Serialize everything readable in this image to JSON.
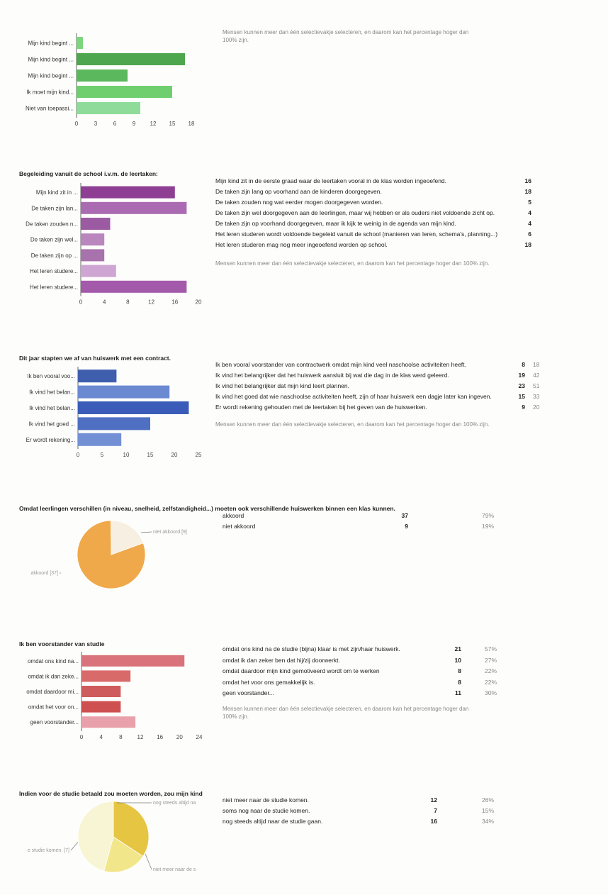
{
  "chart_data": [
    {
      "id": "c1",
      "type": "bar",
      "orientation": "horizontal",
      "title": "",
      "categories": [
        "Mijn kind begint ...",
        "Mijn kind begint ...",
        "Mijn kind begint ...",
        "Ik moet mijn kind...",
        "Niet van toepassi..."
      ],
      "values": [
        1,
        17,
        8,
        15,
        10
      ],
      "xticks": [
        0,
        3,
        6,
        9,
        12,
        15,
        18
      ],
      "xlim": [
        0,
        18
      ],
      "colors": [
        "#7dd67d",
        "#4ea64e",
        "#5cb85c",
        "#6fcf6f",
        "#8fdc9a"
      ],
      "grid": false,
      "legend": "none",
      "note": "Mensen kunnen meer dan één selectievakje selecteren, en daarom kan het percentage hoger dan 100% zijn."
    },
    {
      "id": "c2",
      "type": "bar",
      "orientation": "horizontal",
      "title": "Begeleiding vanuit de school i.v.m. de leertaken:",
      "categories": [
        "Mijn kind zit in ...",
        "De taken zijn lan...",
        "De taken zouden n...",
        "De taken zijn wel...",
        "De taken zijn op ...",
        "Het leren studere...",
        "Het leren studere..."
      ],
      "values": [
        16,
        18,
        5,
        4,
        4,
        6,
        18
      ],
      "xticks": [
        0,
        4,
        8,
        12,
        16,
        20
      ],
      "xlim": [
        0,
        20
      ],
      "colors": [
        "#8e3f94",
        "#ab6bb2",
        "#9c5aa2",
        "#b986be",
        "#a872ad",
        "#cea5d3",
        "#a35aaa"
      ],
      "grid": false,
      "legend": "none",
      "table": [
        {
          "label": "Mijn kind zit in de eerste graad waar de leertaken vooral in de klas worden ingeoefend.",
          "count": "16"
        },
        {
          "label": "De taken zijn lang op voorhand aan de kinderen doorgegeven.",
          "count": "18"
        },
        {
          "label": "De taken zouden nog wat eerder mogen doorgegeven worden.",
          "count": "5"
        },
        {
          "label": "De taken zijn wel doorgegeven aan de leerlingen, maar wij hebben er als ouders niet voldoende zicht op.",
          "count": "4"
        },
        {
          "label": "De taken zijn op voorhand doorgegeven, maar ik kijk te weinig in de agenda van mijn kind.",
          "count": "4"
        },
        {
          "label": "Het leren studeren wordt voldoende begeleid vanuit de school (manieren van leren, schema's, planning...)",
          "count": "6"
        },
        {
          "label": "Het leren studeren mag nog meer ingeoefend worden op school.",
          "count": "18"
        }
      ],
      "note": "Mensen kunnen meer dan één selectievakje selecteren, en daarom kan het percentage hoger dan 100% zijn."
    },
    {
      "id": "c3",
      "type": "bar",
      "orientation": "horizontal",
      "title": "Dit jaar stapten we af van huiswerk met een contract.",
      "categories": [
        "Ik ben vooral voo...",
        "Ik vind het belan...",
        "Ik vind het belan...",
        "Ik vind het goed ...",
        "Er wordt rekening..."
      ],
      "values": [
        8,
        19,
        23,
        15,
        9
      ],
      "xticks": [
        0,
        5,
        10,
        15,
        20,
        25
      ],
      "xlim": [
        0,
        25
      ],
      "colors": [
        "#3f5fae",
        "#6a89d0",
        "#3a5cb8",
        "#4e6fc2",
        "#7390d5"
      ],
      "grid": false,
      "legend": "none",
      "table": [
        {
          "label": "Ik ben vooral voorstander van contractwerk omdat mijn kind veel naschoolse activiteiten heeft.",
          "count": "8",
          "pct": "18"
        },
        {
          "label": "Ik vind het belangrijker dat het huiswerk aansluit bij wat die dag in de klas werd geleerd.",
          "count": "19",
          "pct": "42"
        },
        {
          "label": "Ik vind het belangrijker dat mijn kind leert plannen.",
          "count": "23",
          "pct": "51"
        },
        {
          "label": "Ik vind het goed dat wie naschoolse activiteiten heeft, zijn of haar huiswerk een dagje later kan ingeven.",
          "count": "15",
          "pct": "33"
        },
        {
          "label": "Er wordt rekening gehouden met de leertaken bij het geven van de huiswerken.",
          "count": "9",
          "pct": "20"
        }
      ],
      "note": "Mensen kunnen meer dan één selectievakje selecteren, en daarom kan het percentage hoger dan 100% zijn."
    },
    {
      "id": "c4",
      "type": "pie",
      "title": "Omdat leerlingen verschillen (in niveau, snelheid, zelfstandigheid...) moeten ook verschillende huiswerken binnen een klas kunnen.",
      "slices": [
        {
          "label": "akkoord",
          "value": 37,
          "pct": "79%",
          "callout": "akkoord [37]",
          "color": "#f0a94a"
        },
        {
          "label": "niet akkoord",
          "value": 9,
          "pct": "19%",
          "callout": "niet akkoord [9]",
          "color": "#f7efe1"
        }
      ],
      "legend": "none"
    },
    {
      "id": "c5",
      "type": "bar",
      "orientation": "horizontal",
      "title": "Ik ben voorstander van studie",
      "categories": [
        "omdat ons kind na...",
        "omdat ik dan zeke...",
        "omdat daardoor mi...",
        "omdat het voor on...",
        "geen voorstander..."
      ],
      "values": [
        21,
        10,
        8,
        8,
        11
      ],
      "xticks": [
        0,
        4,
        8,
        12,
        16,
        20,
        24
      ],
      "xlim": [
        0,
        24
      ],
      "colors": [
        "#d9727a",
        "#d96a6a",
        "#cf5c5c",
        "#cf5050",
        "#e8a0aa"
      ],
      "grid": false,
      "legend": "none",
      "table": [
        {
          "label": "omdat ons kind na de studie (bijna) klaar is met zijn/haar huiswerk.",
          "count": "21",
          "pct": "57%"
        },
        {
          "label": "omdat ik dan zeker ben dat hij/zij doorwerkt.",
          "count": "10",
          "pct": "27%"
        },
        {
          "label": "omdat daardoor mijn kind gemotiveerd wordt om te werken",
          "count": "8",
          "pct": "22%"
        },
        {
          "label": "omdat het voor ons gemakkelijk is.",
          "count": "8",
          "pct": "22%"
        },
        {
          "label": "geen voorstander...",
          "count": "11",
          "pct": "30%"
        }
      ],
      "note": "Mensen kunnen meer dan één selectievakje selecteren, en daarom kan het percentage hoger dan 100% zijn."
    },
    {
      "id": "c6",
      "type": "pie",
      "title": "Indien voor de studie betaald zou moeten worden, zou mijn kind",
      "slices": [
        {
          "label": "niet meer naar de studie komen.",
          "value": 12,
          "pct": "26%",
          "callout": "niet meer naar de s",
          "color": "#e6c542"
        },
        {
          "label": "soms nog naar de studie komen.",
          "value": 7,
          "pct": "15%",
          "callout": "e studie komen. [7]",
          "color": "#f1e68a"
        },
        {
          "label": "nog steeds altijd naar de studie gaan.",
          "value": 16,
          "pct": "34%",
          "callout": "nog steeds altijd na",
          "color": "#f8f5d4"
        }
      ],
      "legend": "none"
    }
  ]
}
